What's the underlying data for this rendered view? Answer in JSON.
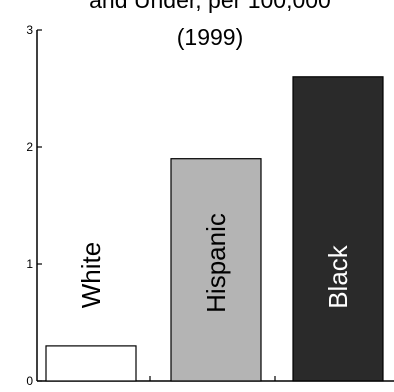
{
  "chart_data": {
    "type": "bar",
    "title_lines": [
      "and Under, per 100,000",
      "(1999)"
    ],
    "categories": [
      "White",
      "Hispanic",
      "Black"
    ],
    "values": [
      0.3,
      1.9,
      2.6
    ],
    "colors": [
      "#ffffff",
      "#b4b4b4",
      "#2a2a2a"
    ],
    "label_colors": [
      "#000000",
      "#000000",
      "#ffffff"
    ],
    "ylim": [
      0,
      3
    ],
    "yticks": [
      0,
      1,
      2,
      3
    ],
    "ytick_labels": [
      "0",
      "1",
      "2",
      "3"
    ],
    "grid": false,
    "legend": "none"
  }
}
